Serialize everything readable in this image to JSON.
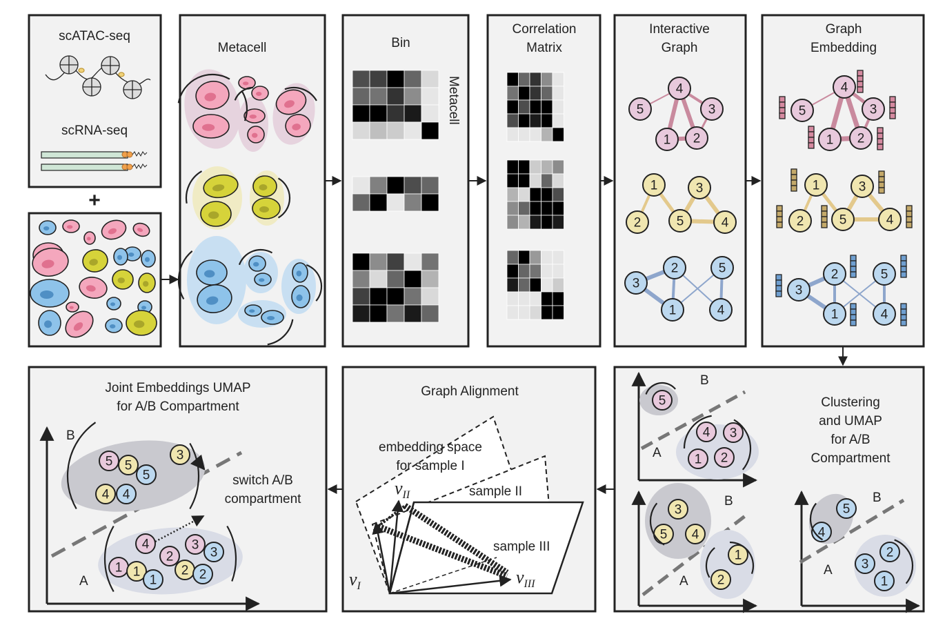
{
  "panels": {
    "input": {
      "label_atac": "scATAC-seq",
      "label_rna": "scRNA-seq",
      "plus": "+"
    },
    "metacell": {
      "title": "Metacell"
    },
    "bin": {
      "title": "Bin",
      "side_label": "Metacell"
    },
    "corr": {
      "title_line1": "Correlation",
      "title_line2": "Matrix"
    },
    "graph": {
      "title_line1": "Interactive",
      "title_line2": "Graph"
    },
    "embedding": {
      "title_line1": "Graph",
      "title_line2": "Embedding"
    },
    "clustering": {
      "title_line1": "Clustering",
      "title_line2": "and UMAP",
      "title_line3": "for A/B",
      "title_line4": "Compartment",
      "label_a": "A",
      "label_b": "B"
    },
    "alignment": {
      "title": "Graph Alignment",
      "space_line1": "embedding space",
      "space_line2": "for sample I",
      "sample2": "sample II",
      "sample3": "sample III",
      "v": "v",
      "sub_i": "I",
      "sub_ii": "II",
      "sub_iii": "III"
    },
    "joint": {
      "title_line1": "Joint Embeddings UMAP",
      "title_line2": "for A/B Compartment",
      "switch_line1": "switch A/B",
      "switch_line2": "compartment",
      "label_a": "A",
      "label_b": "B"
    }
  },
  "node_numbers": [
    "1",
    "2",
    "3",
    "4",
    "5"
  ],
  "colors": {
    "pink": "#e8c9dc",
    "pink_edge": "#c98a9e",
    "yellow": "#f0e6b0",
    "yellow_edge": "#e3c98c",
    "blue": "#bcd8ef",
    "blue_edge": "#8ea6cc",
    "panel_bg": "#f2f2f2",
    "border": "#222222"
  }
}
